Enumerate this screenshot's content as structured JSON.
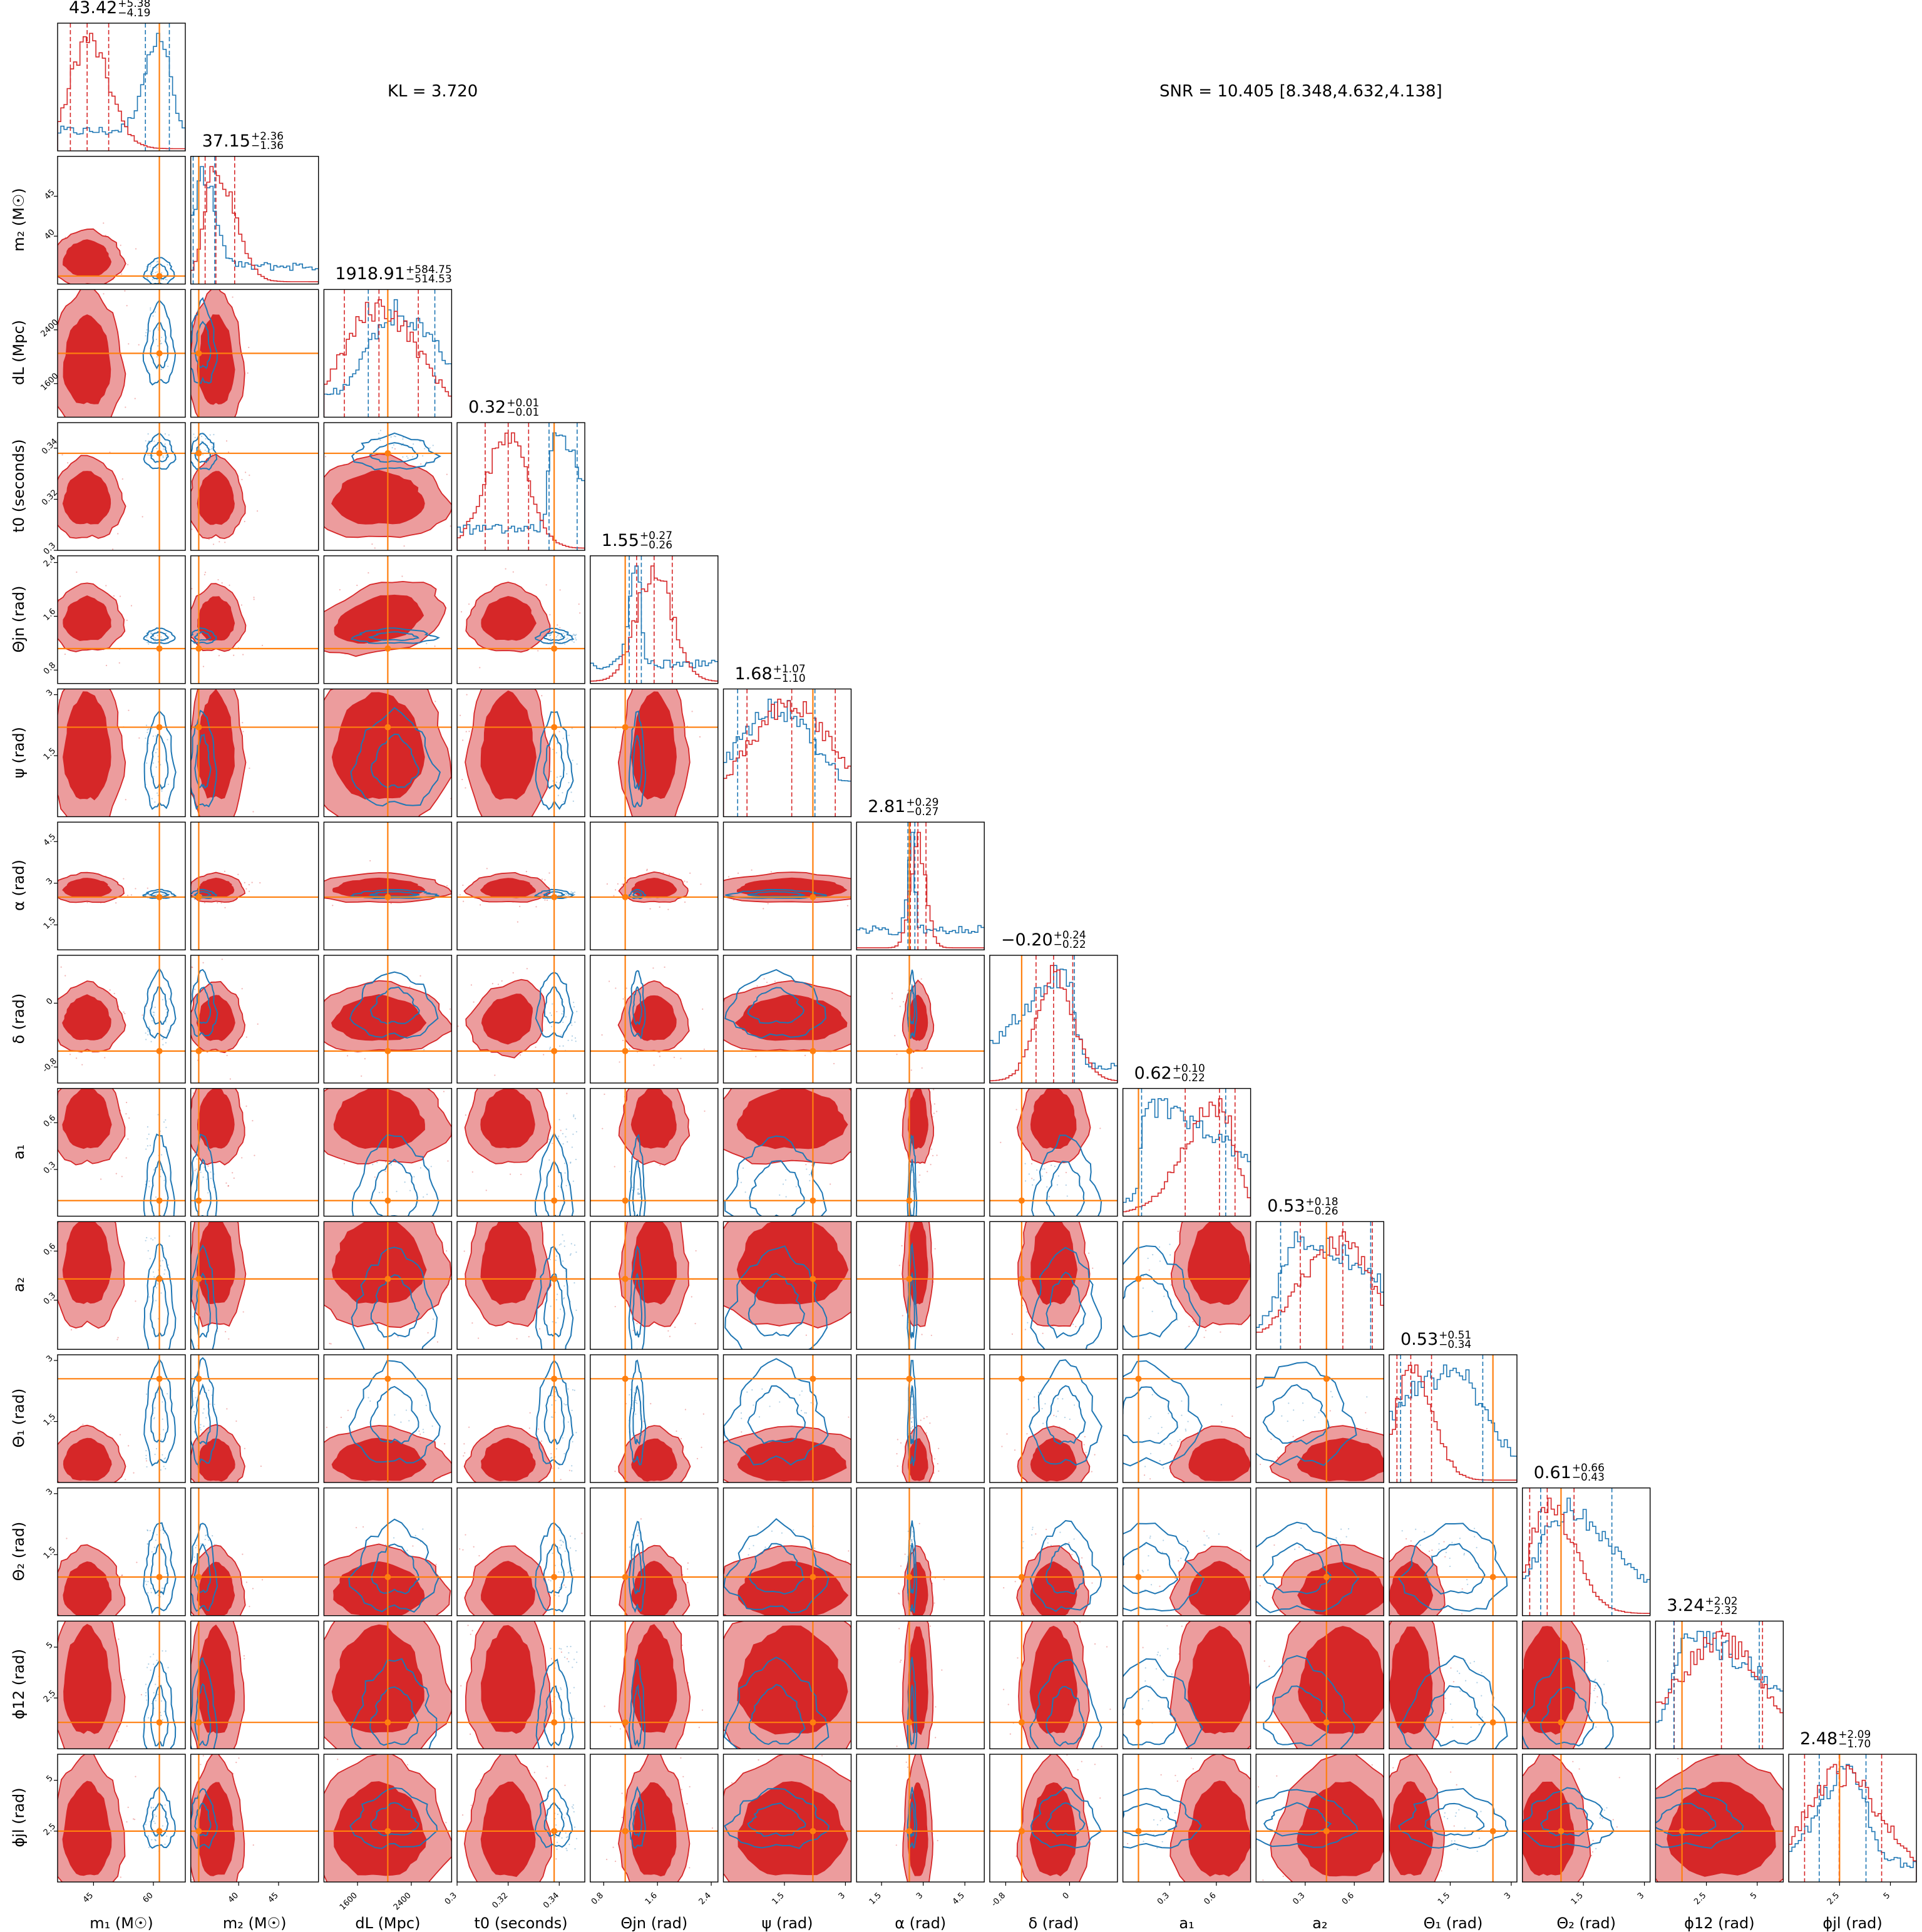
{
  "chart_data": {
    "type": "corner",
    "annotations": {
      "kl": "KL = 3.720",
      "snr": "SNR = 10.405 [8.348,4.632,4.138]"
    },
    "colors": {
      "red": "#d62728",
      "red_light": "#ec9c9d",
      "blue": "#1f77b4",
      "truth": "#ff7f0e"
    },
    "parameters": [
      {
        "label": "m₁ (M☉)",
        "title_val": "43.42",
        "plus": "+5.38",
        "minus": "−4.19",
        "range": [
          36,
          68
        ],
        "ticks": [
          45,
          60
        ],
        "truth": 61.5,
        "red_q": [
          39.2,
          43.4,
          48.8
        ],
        "blue_q": [
          58.0,
          61.5,
          64.0
        ]
      },
      {
        "label": "m₂ (M☉)",
        "title_val": "37.15",
        "plus": "+2.36",
        "minus": "−1.36",
        "range": [
          34,
          50
        ],
        "ticks": [
          40,
          45
        ],
        "truth": 35.0,
        "red_q": [
          35.8,
          37.15,
          39.5
        ],
        "blue_q": [
          34.3,
          35.5,
          37.0
        ]
      },
      {
        "label": "dL (Mpc)",
        "title_val": "1918.91",
        "plus": "+584.75",
        "minus": "−514.53",
        "range": [
          1100,
          3000
        ],
        "ticks": [
          1600,
          2400
        ],
        "truth": 2050,
        "red_q": [
          1404,
          1919,
          2504
        ],
        "blue_q": [
          1760,
          2150,
          2750
        ]
      },
      {
        "label": "t0 (seconds)",
        "title_val": "0.32",
        "plus": "+0.01",
        "minus": "−0.01",
        "range": [
          0.3,
          0.35
        ],
        "ticks": [
          0.3,
          0.32,
          0.34
        ],
        "truth": 0.338,
        "red_q": [
          0.311,
          0.32,
          0.328
        ],
        "blue_q": [
          0.336,
          0.338,
          0.347
        ]
      },
      {
        "label": "Θjn (rad)",
        "title_val": "1.55",
        "plus": "+0.27",
        "minus": "−0.26",
        "range": [
          0.6,
          2.5
        ],
        "ticks": [
          0.8,
          1.6,
          2.4
        ],
        "truth": 1.12,
        "red_q": [
          1.29,
          1.55,
          1.82
        ],
        "blue_q": [
          1.18,
          1.3,
          1.36
        ]
      },
      {
        "label": "ψ (rad)",
        "title_val": "1.68",
        "plus": "+1.07",
        "minus": "−1.10",
        "range": [
          0,
          3.14
        ],
        "ticks": [
          1.5,
          3.0
        ],
        "truth": 2.2,
        "red_q": [
          0.58,
          1.68,
          2.75
        ],
        "blue_q": [
          0.35,
          1.3,
          2.25
        ]
      },
      {
        "label": "α (rad)",
        "title_val": "2.81",
        "plus": "+0.29",
        "minus": "−0.27",
        "range": [
          0.6,
          5.2
        ],
        "ticks": [
          1.5,
          3.0,
          4.5
        ],
        "truth": 2.5,
        "red_q": [
          2.54,
          2.81,
          3.1
        ],
        "blue_q": [
          2.45,
          2.6,
          2.7
        ]
      },
      {
        "label": "δ (rad)",
        "title_val": "−0.20",
        "plus": "+0.24",
        "minus": "−0.22",
        "range": [
          -1.0,
          0.6
        ],
        "ticks": [
          -0.8,
          0.0
        ],
        "truth": -0.6,
        "red_q": [
          -0.42,
          -0.2,
          0.04
        ],
        "blue_q": [
          -0.6,
          -0.05,
          0.06
        ]
      },
      {
        "label": "a₁",
        "title_val": "0.62",
        "plus": "+0.10",
        "minus": "−0.22",
        "range": [
          0,
          0.82
        ],
        "ticks": [
          0.3,
          0.6
        ],
        "truth": 0.1,
        "red_q": [
          0.4,
          0.62,
          0.72
        ],
        "blue_q": [
          0.12,
          0.15,
          0.66
        ]
      },
      {
        "label": "a₂",
        "title_val": "0.53",
        "plus": "+0.18",
        "minus": "−0.26",
        "range": [
          0,
          0.78
        ],
        "ticks": [
          0.3,
          0.6
        ],
        "truth": 0.43,
        "red_q": [
          0.27,
          0.53,
          0.71
        ],
        "blue_q": [
          0.15,
          0.25,
          0.7
        ]
      },
      {
        "label": "Θ₁ (rad)",
        "title_val": "0.53",
        "plus": "+0.51",
        "minus": "−0.34",
        "range": [
          0,
          3.14
        ],
        "ticks": [
          1.5,
          3.0
        ],
        "truth": 2.55,
        "red_q": [
          0.19,
          0.53,
          1.04
        ],
        "blue_q": [
          0.28,
          1.6,
          2.3
        ]
      },
      {
        "label": "Θ₂ (rad)",
        "title_val": "0.61",
        "plus": "+0.66",
        "minus": "−0.43",
        "range": [
          0,
          3.14
        ],
        "ticks": [
          1.5,
          3.0
        ],
        "truth": 0.95,
        "red_q": [
          0.18,
          0.61,
          1.27
        ],
        "blue_q": [
          0.45,
          1.1,
          2.2
        ]
      },
      {
        "label": "ϕ12 (rad)",
        "title_val": "3.24",
        "plus": "+2.02",
        "minus": "−2.32",
        "range": [
          0,
          6.28
        ],
        "ticks": [
          2.5,
          5.0
        ],
        "truth": 1.3,
        "red_q": [
          0.92,
          3.24,
          5.26
        ],
        "blue_q": [
          0.9,
          1.5,
          5.1
        ]
      },
      {
        "label": "ϕjl (rad)",
        "title_val": "2.48",
        "plus": "+2.09",
        "minus": "−1.70",
        "range": [
          0,
          6.28
        ],
        "ticks": [
          2.5,
          5.0
        ],
        "truth": 2.5,
        "red_q": [
          0.78,
          2.48,
          4.57
        ],
        "blue_q": [
          1.5,
          3.0,
          3.8
        ]
      }
    ],
    "grid": false,
    "legend": "none"
  }
}
